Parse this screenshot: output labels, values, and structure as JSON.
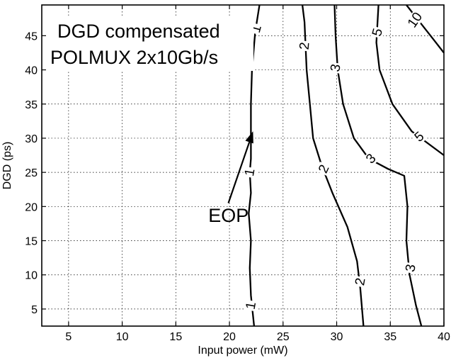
{
  "chart_data": {
    "type": "contour",
    "title_lines": [
      "DGD compensated",
      "POLMUX 2x10Gb/s"
    ],
    "xlabel": "Input power (mW)",
    "ylabel": "DGD (ps)",
    "xlim": [
      2.5,
      40
    ],
    "ylim": [
      2.5,
      49.5
    ],
    "xticks": [
      5,
      10,
      15,
      20,
      25,
      30,
      35,
      40
    ],
    "yticks": [
      5,
      10,
      15,
      20,
      25,
      30,
      35,
      40,
      45
    ],
    "grid": true,
    "annotation": {
      "text": "EOP",
      "text_at": [
        21.8,
        18.8
      ],
      "arrow_from": [
        19.9,
        20.5
      ],
      "arrow_to": [
        22.2,
        31.0
      ]
    },
    "contours": [
      {
        "level": "1",
        "points": [
          [
            22.8,
            49.5
          ],
          [
            22.4,
            45.5
          ],
          [
            22.1,
            40
          ],
          [
            22.0,
            35
          ],
          [
            22.0,
            30
          ],
          [
            22.0,
            27
          ],
          [
            21.9,
            25
          ],
          [
            22.0,
            22
          ],
          [
            21.8,
            19
          ],
          [
            22.0,
            15
          ],
          [
            21.9,
            11
          ],
          [
            22.0,
            7
          ],
          [
            22.3,
            2.5
          ]
        ],
        "labels": [
          {
            "text": "1",
            "at": [
              22.5,
              46.0
            ],
            "angle": -75
          },
          {
            "text": "1",
            "at": [
              21.9,
              25.0
            ],
            "angle": -80
          },
          {
            "text": "1",
            "at": [
              22.0,
              5.5
            ],
            "angle": -80
          }
        ]
      },
      {
        "level": "2",
        "points": [
          [
            26.8,
            49.5
          ],
          [
            27.0,
            47
          ],
          [
            27.2,
            40
          ],
          [
            27.5,
            35
          ],
          [
            27.8,
            30
          ],
          [
            28.6,
            26
          ],
          [
            29.6,
            22
          ],
          [
            31.0,
            17
          ],
          [
            31.9,
            12
          ],
          [
            32.2,
            8
          ],
          [
            32.5,
            2.5
          ]
        ],
        "labels": [
          {
            "text": "2",
            "at": [
              27.0,
              43.5
            ],
            "angle": -85
          },
          {
            "text": "2",
            "at": [
              28.8,
              25.5
            ],
            "angle": -65
          },
          {
            "text": "2",
            "at": [
              32.2,
              9.0
            ],
            "angle": -80
          }
        ]
      },
      {
        "level": "3",
        "points": [
          [
            29.8,
            49.5
          ],
          [
            29.9,
            45
          ],
          [
            30.1,
            40
          ],
          [
            30.6,
            35
          ],
          [
            31.6,
            30
          ],
          [
            33.0,
            27
          ],
          [
            34.8,
            25.5
          ],
          [
            36.3,
            24.5
          ],
          [
            36.6,
            20
          ],
          [
            36.5,
            15
          ],
          [
            36.8,
            10
          ],
          [
            37.4,
            5.5
          ],
          [
            37.9,
            2.5
          ]
        ],
        "labels": [
          {
            "text": "3",
            "at": [
              29.9,
              40.3
            ],
            "angle": -80
          },
          {
            "text": "3",
            "at": [
              33.2,
              27.0
            ],
            "angle": -45
          },
          {
            "text": "3",
            "at": [
              36.9,
              11.0
            ],
            "angle": -80
          }
        ]
      },
      {
        "level": "5",
        "points": [
          [
            33.9,
            49.5
          ],
          [
            33.7,
            44
          ],
          [
            34.0,
            40
          ],
          [
            35.2,
            35
          ],
          [
            37.0,
            31
          ],
          [
            40.0,
            27.5
          ]
        ],
        "labels": [
          {
            "text": "5",
            "at": [
              33.8,
              45.5
            ],
            "angle": -75
          },
          {
            "text": "5",
            "at": [
              37.7,
              30.2
            ],
            "angle": -40
          }
        ]
      },
      {
        "level": "10",
        "points": [
          [
            36.5,
            49.5
          ],
          [
            37.5,
            47.5
          ],
          [
            39.0,
            44.5
          ],
          [
            40.0,
            42.5
          ]
        ],
        "labels": [
          {
            "text": "10",
            "at": [
              37.3,
              47.3
            ],
            "angle": -55
          }
        ]
      }
    ]
  }
}
